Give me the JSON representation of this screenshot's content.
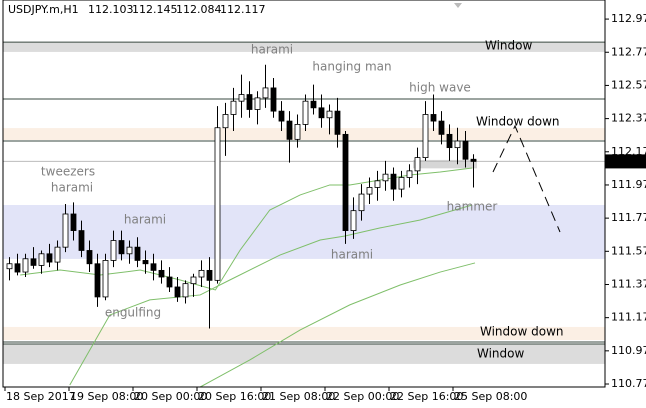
{
  "chart_data": {
    "type": "candlestick",
    "symbol": "USDJPY.m,H1",
    "header_ohlc": [
      112.103,
      112.145,
      112.084,
      112.117
    ],
    "current_price": 112.117,
    "ylim": [
      110.757,
      113.09
    ],
    "yticks": [
      110.775,
      110.975,
      111.175,
      111.375,
      111.575,
      111.775,
      111.975,
      112.175,
      112.375,
      112.575,
      112.775,
      112.975
    ],
    "xticks": [
      {
        "value": 0,
        "label": "18 Sep 2017"
      },
      {
        "value": 8,
        "label": "19 Sep 08:00"
      },
      {
        "value": 16,
        "label": "20 Sep 00:00"
      },
      {
        "value": 24,
        "label": "20 Sep 16:00"
      },
      {
        "value": 32,
        "label": "21 Sep 08:00"
      },
      {
        "value": 40,
        "label": "22 Sep 00:00"
      },
      {
        "value": 48,
        "label": "22 Sep 16:00"
      },
      {
        "value": 56,
        "label": "25 Sep 08:00"
      }
    ],
    "candles": [
      [
        111.47,
        111.54,
        111.4,
        111.5
      ],
      [
        111.5,
        111.56,
        111.43,
        111.45
      ],
      [
        111.45,
        111.56,
        111.42,
        111.53
      ],
      [
        111.53,
        111.6,
        111.47,
        111.49
      ],
      [
        111.49,
        111.58,
        111.44,
        111.56
      ],
      [
        111.56,
        111.62,
        111.48,
        111.51
      ],
      [
        111.51,
        111.64,
        111.46,
        111.6
      ],
      [
        111.6,
        111.86,
        111.57,
        111.8
      ],
      [
        111.8,
        111.87,
        111.64,
        111.7
      ],
      [
        111.7,
        111.76,
        111.54,
        111.58
      ],
      [
        111.58,
        111.64,
        111.45,
        111.5
      ],
      [
        111.5,
        111.56,
        111.24,
        111.3
      ],
      [
        111.3,
        111.56,
        111.28,
        111.52
      ],
      [
        111.52,
        111.7,
        111.48,
        111.64
      ],
      [
        111.64,
        111.7,
        111.52,
        111.56
      ],
      [
        111.56,
        111.64,
        111.5,
        111.6
      ],
      [
        111.6,
        111.66,
        111.48,
        111.52
      ],
      [
        111.52,
        111.58,
        111.44,
        111.5
      ],
      [
        111.5,
        111.56,
        111.4,
        111.46
      ],
      [
        111.46,
        111.52,
        111.38,
        111.42
      ],
      [
        111.42,
        111.48,
        111.33,
        111.36
      ],
      [
        111.36,
        111.42,
        111.27,
        111.3
      ],
      [
        111.3,
        111.4,
        111.26,
        111.38
      ],
      [
        111.38,
        111.44,
        111.3,
        111.42
      ],
      [
        111.42,
        111.52,
        111.36,
        111.46
      ],
      [
        111.46,
        111.54,
        111.11,
        111.4
      ],
      [
        111.4,
        112.45,
        111.38,
        112.32
      ],
      [
        112.32,
        112.47,
        112.15,
        112.4
      ],
      [
        112.4,
        112.56,
        112.3,
        112.48
      ],
      [
        112.48,
        112.64,
        112.38,
        112.52
      ],
      [
        112.52,
        112.6,
        112.38,
        112.43
      ],
      [
        112.43,
        112.54,
        112.34,
        112.5
      ],
      [
        112.5,
        112.7,
        112.44,
        112.56
      ],
      [
        112.56,
        112.62,
        112.38,
        112.42
      ],
      [
        112.42,
        112.48,
        112.3,
        112.36
      ],
      [
        112.36,
        112.42,
        112.11,
        112.25
      ],
      [
        112.25,
        112.4,
        112.2,
        112.34
      ],
      [
        112.34,
        112.52,
        112.3,
        112.48
      ],
      [
        112.48,
        112.58,
        112.4,
        112.44
      ],
      [
        112.44,
        112.52,
        112.32,
        112.38
      ],
      [
        112.38,
        112.46,
        112.28,
        112.42
      ],
      [
        112.42,
        112.5,
        112.2,
        112.28
      ],
      [
        112.28,
        112.3,
        111.62,
        111.7
      ],
      [
        111.7,
        111.9,
        111.65,
        111.82
      ],
      [
        111.82,
        111.98,
        111.76,
        111.92
      ],
      [
        111.92,
        112.02,
        111.86,
        111.96
      ],
      [
        111.96,
        112.06,
        111.88,
        112.0
      ],
      [
        112.0,
        112.12,
        111.94,
        112.04
      ],
      [
        112.04,
        112.08,
        111.88,
        111.95
      ],
      [
        111.95,
        112.06,
        111.9,
        112.02
      ],
      [
        112.02,
        112.1,
        111.96,
        112.06
      ],
      [
        112.06,
        112.2,
        111.98,
        112.14
      ],
      [
        112.14,
        112.48,
        112.12,
        112.4
      ],
      [
        112.4,
        112.52,
        112.3,
        112.36
      ],
      [
        112.36,
        112.42,
        112.22,
        112.28
      ],
      [
        112.28,
        112.34,
        112.12,
        112.2
      ],
      [
        112.2,
        112.32,
        112.1,
        112.24
      ],
      [
        112.24,
        112.3,
        112.08,
        112.13
      ],
      [
        112.13,
        112.16,
        111.96,
        112.117
      ]
    ],
    "moving_averages": [
      {
        "color": "#7fbf6a",
        "x": [
          1.4,
          6.4,
          11.4,
          16.4,
          21.4,
          25.8,
          28.9,
          32.6,
          36.4,
          40.1,
          42.6,
          46.4,
          50.1,
          53.9,
          57.9
        ],
        "values": [
          111.432,
          111.462,
          111.432,
          111.462,
          111.402,
          111.342,
          111.583,
          111.824,
          111.915,
          111.975,
          111.975,
          112.005,
          112.035,
          112.053,
          112.077
        ]
      },
      {
        "color": "#7fbf6a",
        "x": [
          7.6,
          12.6,
          17.6,
          23.9,
          27.6,
          33.9,
          38.9,
          42,
          46.4,
          51.4,
          57.9
        ],
        "values": [
          110.769,
          111.191,
          111.282,
          111.312,
          111.402,
          111.553,
          111.643,
          111.667,
          111.716,
          111.764,
          111.854
        ]
      },
      {
        "color": "#7fbf6a",
        "x": [
          23.9,
          30.1,
          36.4,
          42.6,
          48.9,
          53.9,
          58.25
        ],
        "values": [
          110.757,
          110.92,
          111.101,
          111.252,
          111.372,
          111.45,
          111.505
        ]
      }
    ],
    "zones": [
      {
        "top": 112.836,
        "bottom": 112.777,
        "color": "#dcdcdc",
        "label": "Window",
        "label_color": "#6b7d3a"
      },
      {
        "top": 112.318,
        "bottom": 112.246,
        "color": "#fbefe4",
        "label": "Window down",
        "label_color": "#c8962a"
      },
      {
        "top": 112.126,
        "bottom": 112.075,
        "color": "#d6d6d6",
        "start": 51
      },
      {
        "top": 111.854,
        "bottom": 111.529,
        "color": "#e2e4f8"
      },
      {
        "top": 111.119,
        "bottom": 111.04,
        "color": "#fbefe4",
        "label": "Window down",
        "label_color": "#c8962a"
      },
      {
        "top": 111.016,
        "bottom": 110.896,
        "color": "#dcdcdc",
        "label": "Window",
        "label_color": "#6b7d3a"
      }
    ],
    "levels": [
      112.836,
      112.493,
      112.24,
      111.028,
      111.016
    ],
    "level_color": "#3a4a40",
    "annotations": [
      "harami",
      "hanging man",
      "high wave",
      "tweezers",
      "harami",
      "harami",
      "harami",
      "hammer",
      "engulfing"
    ]
  }
}
